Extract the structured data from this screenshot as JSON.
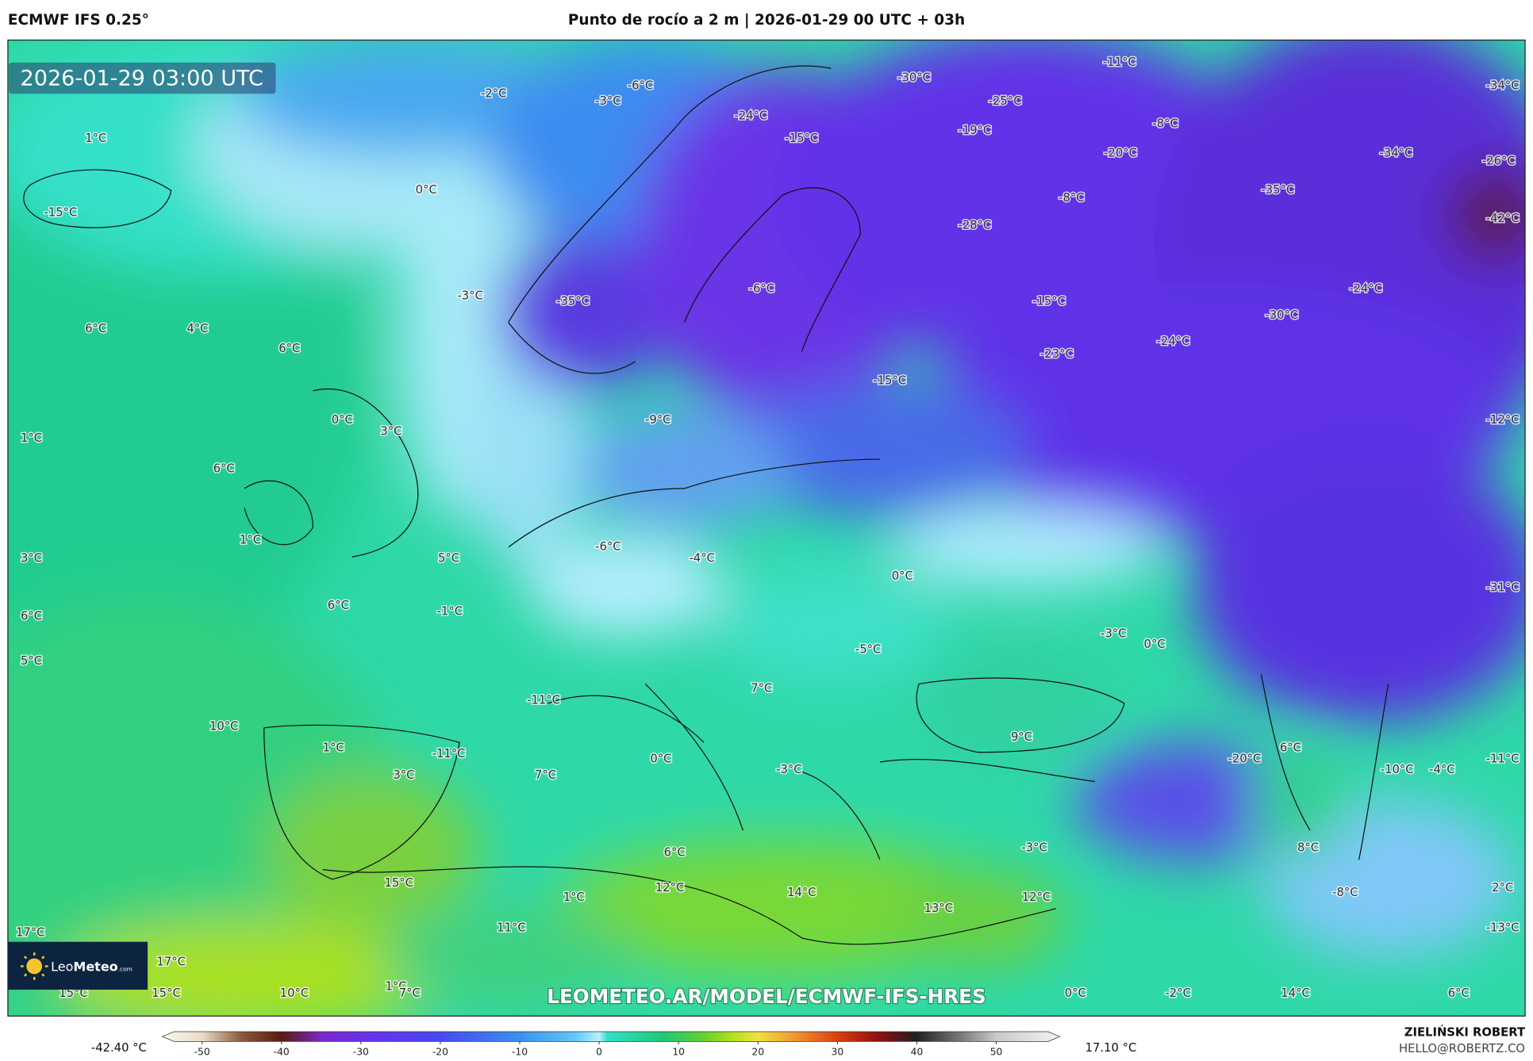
{
  "header": {
    "model": "ECMWF IFS 0.25°",
    "title": "Punto de rocío a 2 m | 2026-01-29 00 UTC + 03h"
  },
  "map": {
    "timestamp": "2026-01-29 03:00 UTC",
    "labels": [
      "-11°C",
      "-34°C",
      "-30°C",
      "-6°C",
      "-2°C",
      "-3°C",
      "-25°C",
      "-24°C",
      "-8°C",
      "1°C",
      "-15°C",
      "-19°C",
      "-20°C",
      "-34°C",
      "-26°C",
      "0°C",
      "-35°C",
      "-8°C",
      "-15°C",
      "-42°C",
      "-28°C",
      "-6°C",
      "-3°C",
      "-24°C",
      "-35°C",
      "-15°C",
      "-30°C",
      "6°C",
      "4°C",
      "-24°C",
      "6°C",
      "-23°C",
      "-15°C",
      "0°C",
      "-9°C",
      "-12°C",
      "3°C",
      "1°C",
      "6°C",
      "1°C",
      "-6°C",
      "-4°C",
      "3°C",
      "5°C",
      "0°C",
      "-31°C",
      "6°C",
      "-1°C",
      "6°C",
      "-3°C",
      "0°C",
      "-5°C",
      "5°C",
      "7°C",
      "-11°C",
      "10°C",
      "9°C",
      "1°C",
      "-11°C",
      "0°C",
      "-20°C",
      "6°C",
      "-11°C",
      "3°C",
      "7°C",
      "-3°C",
      "-10°C",
      "-4°C",
      "-3°C",
      "6°C",
      "8°C",
      "15°C",
      "12°C",
      "1°C",
      "14°C",
      "-8°C",
      "2°C",
      "12°C",
      "13°C",
      "11°C",
      "-13°C",
      "17°C",
      "17°C",
      "1°C",
      "15°C",
      "15°C",
      "10°C",
      "7°C",
      "0°C",
      "-2°C",
      "14°C",
      "6°C"
    ],
    "logo": "Leo",
    "logo_bold": "Meteo",
    "logo_suffix": ".com",
    "watermark": "LEOMETEO.AR/MODEL/ECMWF-IFS-HRES"
  },
  "colorbar": {
    "min_label": "-42.40 °C",
    "max_label": "17.10 °C",
    "lim": [
      -55,
      58
    ],
    "ticks": [
      -50,
      -40,
      -30,
      -20,
      -10,
      0,
      10,
      20,
      30,
      40,
      50
    ],
    "colormap": [
      [
        -55,
        "#fbf8ef"
      ],
      [
        -50,
        "#e8dcc8"
      ],
      [
        -45,
        "#8a5a3a"
      ],
      [
        -40,
        "#5a1a10"
      ],
      [
        -35,
        "#7a28c8"
      ],
      [
        -30,
        "#6a30e8"
      ],
      [
        -20,
        "#4848f0"
      ],
      [
        -10,
        "#3a90f0"
      ],
      [
        -3,
        "#60c8f8"
      ],
      [
        0,
        "#b8f0ff"
      ],
      [
        1,
        "#30e0c8"
      ],
      [
        8,
        "#20c878"
      ],
      [
        13,
        "#60d030"
      ],
      [
        17,
        "#b8e020"
      ],
      [
        20,
        "#f0e040"
      ],
      [
        25,
        "#f09030"
      ],
      [
        30,
        "#d84010"
      ],
      [
        35,
        "#901010"
      ],
      [
        40,
        "#202020"
      ],
      [
        45,
        "#707070"
      ],
      [
        50,
        "#c8c8c8"
      ],
      [
        58,
        "#f4f4f4"
      ]
    ]
  },
  "footer": {
    "author": "ZIELIŃSKI ROBERT",
    "email": "HELLO@ROBERTZ.CO"
  }
}
